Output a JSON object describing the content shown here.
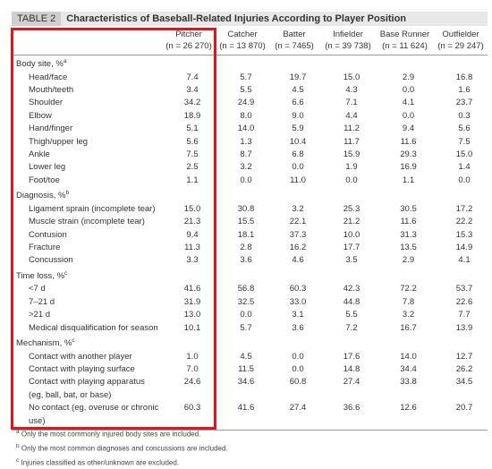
{
  "header": {
    "label": "TABLE 2",
    "title": "Characteristics of Baseball-Related Injuries According to Player Position"
  },
  "table": {
    "columns": [
      {
        "name": "Pitcher",
        "n": "(n = 26 270)"
      },
      {
        "name": "Catcher",
        "n": "(n = 13 870)"
      },
      {
        "name": "Batter",
        "n": "(n = 7465)"
      },
      {
        "name": "Infielder",
        "n": "(n = 39 738)"
      },
      {
        "name": "Base Runner",
        "n": "(n = 11 624)"
      },
      {
        "name": "Outfielder",
        "n": "(n = 29 247)"
      }
    ],
    "sections": [
      {
        "title": "Body site, %",
        "note": "a",
        "rows": [
          {
            "label": "Head/face",
            "values": [
              "7.4",
              "5.7",
              "19.7",
              "15.0",
              "2.9",
              "16.8"
            ]
          },
          {
            "label": "Mouth/teeth",
            "values": [
              "3.4",
              "5.5",
              "4.5",
              "4.3",
              "0.0",
              "1.6"
            ]
          },
          {
            "label": "Shoulder",
            "values": [
              "34.2",
              "24.9",
              "6.6",
              "7.1",
              "4.1",
              "23.7"
            ]
          },
          {
            "label": "Elbow",
            "values": [
              "18.9",
              "8.0",
              "9.0",
              "4.4",
              "0.0",
              "0.3"
            ]
          },
          {
            "label": "Hand/finger",
            "values": [
              "5.1",
              "14.0",
              "5.9",
              "11.2",
              "9.4",
              "5.6"
            ]
          },
          {
            "label": "Thigh/upper leg",
            "values": [
              "5.6",
              "1.3",
              "10.4",
              "11.7",
              "11.6",
              "7.5"
            ]
          },
          {
            "label": "Ankle",
            "values": [
              "7.5",
              "8.7",
              "6.8",
              "15.9",
              "29.3",
              "15.0"
            ]
          },
          {
            "label": "Lower leg",
            "values": [
              "2.5",
              "3.2",
              "0.0",
              "1.9",
              "16.9",
              "1.4"
            ]
          },
          {
            "label": "Foot/toe",
            "values": [
              "1.1",
              "0.0",
              "11.0",
              "0.0",
              "1.1",
              "0.0"
            ]
          }
        ]
      },
      {
        "title": "Diagnosis, %",
        "note": "b",
        "rows": [
          {
            "label": "Ligament sprain (incomplete tear)",
            "values": [
              "15.0",
              "30.8",
              "3.2",
              "25.3",
              "30.5",
              "17.2"
            ]
          },
          {
            "label": "Muscle strain (incomplete tear)",
            "values": [
              "21.3",
              "15.5",
              "22.1",
              "21.2",
              "11.6",
              "22.2"
            ]
          },
          {
            "label": "Contusion",
            "values": [
              "9.4",
              "18.1",
              "37.3",
              "10.0",
              "31.3",
              "15.3"
            ]
          },
          {
            "label": "Fracture",
            "values": [
              "11.3",
              "2.8",
              "16.2",
              "17.7",
              "13.5",
              "14.9"
            ]
          },
          {
            "label": "Concussion",
            "values": [
              "3.3",
              "3.6",
              "4.6",
              "3.5",
              "2.9",
              "4.1"
            ]
          }
        ]
      },
      {
        "title": "Time loss, %",
        "note": "c",
        "rows": [
          {
            "label": "<7 d",
            "values": [
              "41.6",
              "56.8",
              "60.3",
              "42.3",
              "72.2",
              "53.7"
            ]
          },
          {
            "label": "7–21 d",
            "values": [
              "31.9",
              "32.5",
              "33.0",
              "44.8",
              "7.8",
              "22.6"
            ]
          },
          {
            "label": ">21 d",
            "values": [
              "13.0",
              "0.0",
              "3.1",
              "5.5",
              "3.2",
              "7.7"
            ]
          },
          {
            "label": "Medical disqualification for season",
            "values": [
              "10.1",
              "5.7",
              "3.6",
              "7.2",
              "16.7",
              "13.9"
            ]
          }
        ]
      },
      {
        "title": "Mechanism, %",
        "note": "c",
        "rows": [
          {
            "label": "Contact with another player",
            "values": [
              "1.0",
              "4.5",
              "0.0",
              "17.6",
              "14.0",
              "12.7"
            ]
          },
          {
            "label": "Contact with playing surface",
            "values": [
              "7.0",
              "11.5",
              "0.0",
              "14.8",
              "34.4",
              "26.2"
            ]
          },
          {
            "label": "Contact with playing apparatus (eg, ball, bat, or base)",
            "values": [
              "24.6",
              "34.6",
              "60.8",
              "27.4",
              "33.8",
              "34.5"
            ]
          },
          {
            "label": "No contact (eg, overuse or chronic use)",
            "values": [
              "60.3",
              "41.6",
              "27.4",
              "36.6",
              "12.6",
              "20.7"
            ]
          }
        ]
      }
    ]
  },
  "footnotes": [
    {
      "mark": "a",
      "text": "Only the most commonly injured body sites are included."
    },
    {
      "mark": "b",
      "text": "Only the most common diagnoses and concussions are included."
    },
    {
      "mark": "c",
      "text": "Injuries classified as other/unknown are excluded."
    }
  ]
}
